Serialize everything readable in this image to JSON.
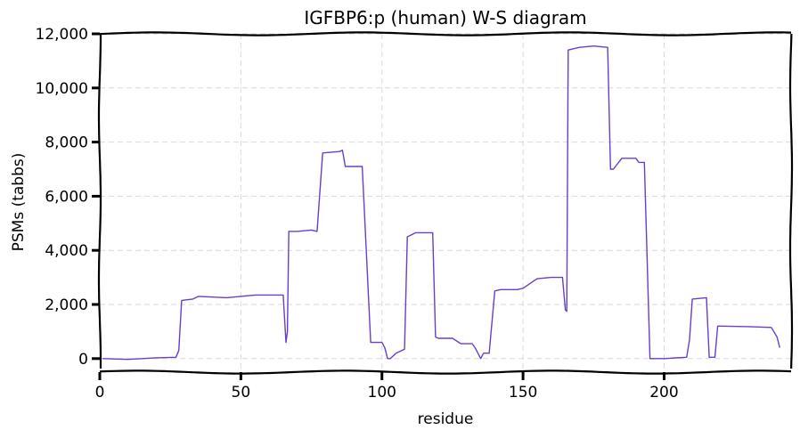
{
  "chart_data": {
    "type": "line",
    "title": "IGFBP6:p (human) W-S diagram",
    "xlabel": "residue",
    "ylabel": "PSMs (tabbs)",
    "xlim": [
      0,
      245
    ],
    "ylim": [
      -500,
      12000
    ],
    "xticks": [
      0,
      50,
      100,
      150,
      200
    ],
    "yticks": [
      0,
      2000,
      4000,
      6000,
      8000,
      10000,
      12000
    ],
    "ytick_labels": [
      "0",
      "2,000",
      "4,000",
      "6,000",
      "8,000",
      "10,000",
      "12,000"
    ],
    "grid": true,
    "legend": "none",
    "series": [
      {
        "color": "#6a3ec8",
        "x": [
          1,
          10,
          20,
          27,
          28,
          29,
          33,
          35,
          45,
          55,
          65,
          66,
          66.5,
          67,
          70,
          75,
          77,
          79,
          85,
          86,
          87,
          93,
          96,
          100,
          101,
          102,
          103,
          105,
          108,
          109,
          110,
          112,
          118,
          119,
          120,
          125,
          128,
          132,
          133,
          135,
          136,
          138,
          140,
          142,
          148,
          150,
          155,
          160,
          164,
          165,
          165.5,
          166,
          170,
          175,
          180,
          181,
          182,
          185,
          190,
          191,
          193,
          195,
          200,
          208,
          209,
          210,
          215,
          216,
          218,
          219,
          220,
          230,
          238,
          240,
          241
        ],
        "y": [
          0,
          -30,
          30,
          50,
          300,
          2150,
          2200,
          2300,
          2250,
          2350,
          2350,
          600,
          1000,
          4700,
          4700,
          4750,
          4700,
          7600,
          7650,
          7700,
          7100,
          7100,
          600,
          600,
          400,
          0,
          0,
          200,
          350,
          4500,
          4550,
          4650,
          4650,
          800,
          750,
          750,
          550,
          550,
          400,
          0,
          200,
          200,
          2500,
          2550,
          2550,
          2600,
          2950,
          3000,
          3000,
          1800,
          1750,
          11400,
          11500,
          11550,
          11500,
          7000,
          7000,
          7400,
          7400,
          7250,
          7250,
          0,
          0,
          50,
          700,
          2200,
          2250,
          50,
          50,
          1200,
          1200,
          1180,
          1150,
          800,
          400
        ]
      }
    ]
  }
}
